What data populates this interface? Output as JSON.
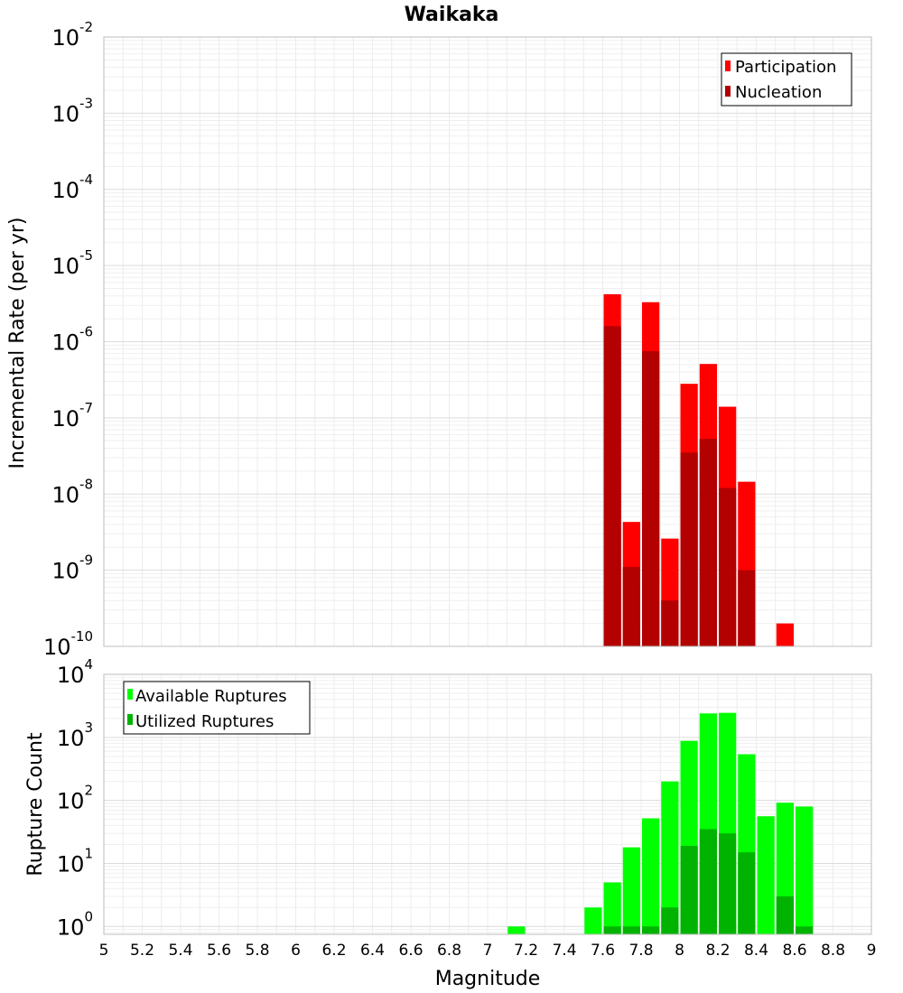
{
  "chart_data": [
    {
      "type": "bar",
      "title": "Waikaka",
      "xlabel": "",
      "ylabel": "Incremental Rate (per yr)",
      "xlim": [
        5,
        9
      ],
      "ylim": [
        1e-10,
        0.01
      ],
      "yscale": "log",
      "bar_width": 0.1,
      "grid": true,
      "legend_position": "top-right",
      "y_ticks": [
        {
          "base": "10",
          "exp": "-10",
          "value": 1e-10
        },
        {
          "base": "10",
          "exp": "-9",
          "value": 1e-09
        },
        {
          "base": "10",
          "exp": "-8",
          "value": 1e-08
        },
        {
          "base": "10",
          "exp": "-7",
          "value": 1e-07
        },
        {
          "base": "10",
          "exp": "-6",
          "value": 1e-06
        },
        {
          "base": "10",
          "exp": "-5",
          "value": 1e-05
        },
        {
          "base": "10",
          "exp": "-4",
          "value": 0.0001
        },
        {
          "base": "10",
          "exp": "-3",
          "value": 0.001
        },
        {
          "base": "10",
          "exp": "-2",
          "value": 0.01
        }
      ],
      "series": [
        {
          "name": "Participation",
          "color": "#ff0000",
          "x": [
            7.65,
            7.75,
            7.85,
            7.95,
            8.05,
            8.15,
            8.25,
            8.35,
            8.55
          ],
          "values": [
            4.2e-06,
            4.3e-09,
            3.3e-06,
            2.6e-09,
            2.8e-07,
            5.1e-07,
            1.4e-07,
            1.45e-08,
            2e-10
          ]
        },
        {
          "name": "Nucleation",
          "color": "#b30000",
          "x": [
            7.65,
            7.75,
            7.85,
            7.95,
            8.05,
            8.15,
            8.25,
            8.35
          ],
          "values": [
            1.6e-06,
            1.1e-09,
            7.5e-07,
            4e-10,
            3.5e-08,
            5.3e-08,
            1.2e-08,
            1e-09
          ]
        }
      ]
    },
    {
      "type": "bar",
      "title": "",
      "xlabel": "Magnitude",
      "ylabel": "Rupture Count",
      "xlim": [
        5,
        9
      ],
      "ylim": [
        0.75,
        10000
      ],
      "yscale": "log",
      "bar_width": 0.1,
      "grid": true,
      "legend_position": "top-left",
      "x_ticks": [
        "5",
        "5.2",
        "5.4",
        "5.6",
        "5.8",
        "6",
        "6.2",
        "6.4",
        "6.6",
        "6.8",
        "7",
        "7.2",
        "7.4",
        "7.6",
        "7.8",
        "8",
        "8.2",
        "8.4",
        "8.6",
        "8.8",
        "9"
      ],
      "y_ticks": [
        {
          "base": "10",
          "exp": "0",
          "value": 1
        },
        {
          "base": "10",
          "exp": "1",
          "value": 10
        },
        {
          "base": "10",
          "exp": "2",
          "value": 100
        },
        {
          "base": "10",
          "exp": "3",
          "value": 1000
        },
        {
          "base": "10",
          "exp": "4",
          "value": 10000
        }
      ],
      "series": [
        {
          "name": "Available Ruptures",
          "color": "#00ff00",
          "x": [
            7.15,
            7.55,
            7.65,
            7.75,
            7.85,
            7.95,
            8.05,
            8.15,
            8.25,
            8.35,
            8.45,
            8.55,
            8.65
          ],
          "values": [
            1,
            2,
            5,
            18,
            52,
            200,
            880,
            2400,
            2450,
            540,
            56,
            92,
            80
          ]
        },
        {
          "name": "Utilized Ruptures",
          "color": "#00b300",
          "x": [
            7.65,
            7.75,
            7.85,
            7.95,
            8.05,
            8.15,
            8.25,
            8.35,
            8.55,
            8.65
          ],
          "values": [
            1,
            1,
            1,
            2,
            19,
            35,
            30,
            15,
            3,
            1
          ]
        }
      ]
    }
  ]
}
